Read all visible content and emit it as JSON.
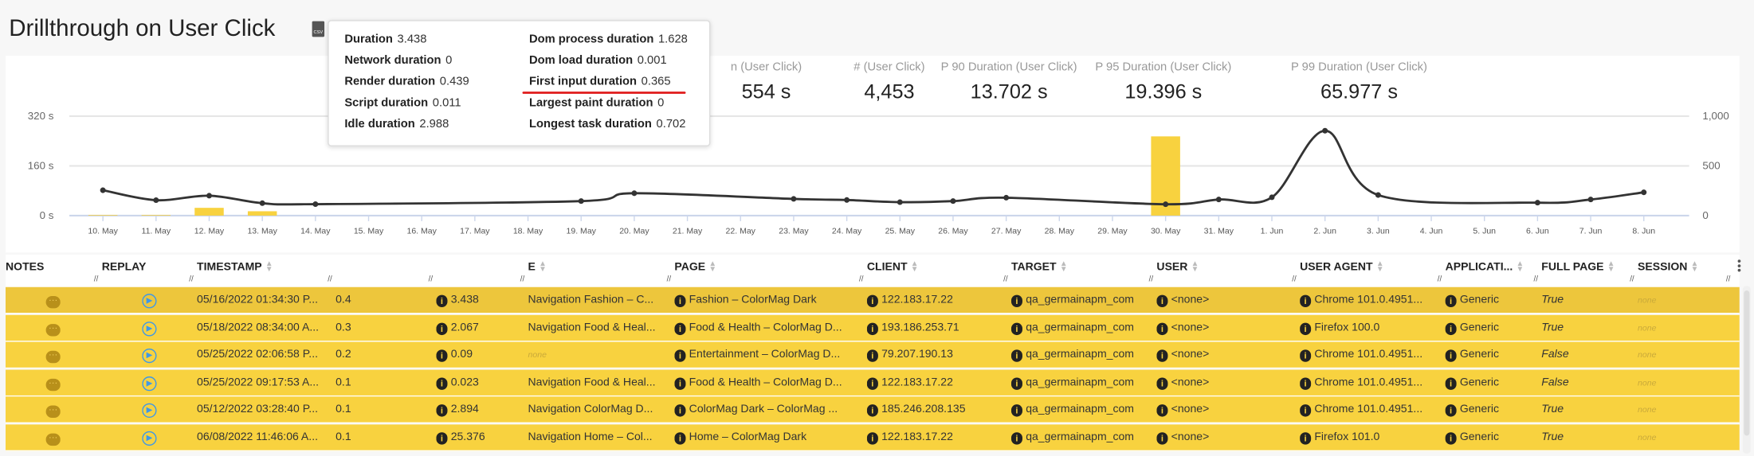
{
  "page": {
    "title": "Drillthrough on User Click",
    "export_icon": "csv-file-icon"
  },
  "stats": [
    {
      "label": "n (User Click)",
      "value": "554 s"
    },
    {
      "label": "# (User Click)",
      "value": "4,453"
    },
    {
      "label": "P 90 Duration (User Click)",
      "value": "13.702 s"
    },
    {
      "label": "P 95 Duration (User Click)",
      "value": "19.396 s"
    },
    {
      "label": "P 99 Duration (User Click)",
      "value": "65.977 s"
    }
  ],
  "chart_data": {
    "type": "bar",
    "x_categories": [
      "10. May",
      "11. May",
      "12. May",
      "13. May",
      "14. May",
      "15. May",
      "16. May",
      "17. May",
      "18. May",
      "19. May",
      "20. May",
      "21. May",
      "22. May",
      "23. May",
      "24. May",
      "25. May",
      "26. May",
      "27. May",
      "28. May",
      "29. May",
      "30. May",
      "31. May",
      "1. Jun",
      "2. Jun",
      "3. Jun",
      "4. Jun",
      "5. Jun",
      "6. Jun",
      "7. Jun",
      "8. Jun"
    ],
    "left_axis": {
      "ticks": [
        "0 s",
        "160 s",
        "320 s"
      ],
      "range": [
        0,
        320
      ],
      "unit": "s"
    },
    "right_axis": {
      "ticks": [
        "0",
        "500",
        "1,000"
      ],
      "range": [
        0,
        1000
      ]
    },
    "grid": true,
    "series": [
      {
        "type": "bar",
        "axis": "left",
        "color": "#f8d23f",
        "points": [
          [
            "10. May",
            2
          ],
          [
            "11. May",
            2
          ],
          [
            "12. May",
            25
          ],
          [
            "13. May",
            14
          ],
          [
            "30. May",
            255
          ]
        ]
      },
      {
        "type": "line",
        "axis": "right",
        "color": "#333333",
        "points": [
          [
            "10. May",
            255
          ],
          [
            "11. May",
            155
          ],
          [
            "12. May",
            200
          ],
          [
            "13. May",
            125
          ],
          [
            "14. May",
            115
          ],
          [
            "19. May",
            146
          ],
          [
            "20. May",
            225
          ],
          [
            "23. May",
            168
          ],
          [
            "24. May",
            157
          ],
          [
            "25. May",
            135
          ],
          [
            "26. May",
            146
          ],
          [
            "27. May",
            180
          ],
          [
            "30. May",
            114
          ],
          [
            "31. May",
            162
          ],
          [
            "1. Jun",
            184
          ],
          [
            "2. Jun",
            854
          ],
          [
            "3. Jun",
            207
          ],
          [
            "6. Jun",
            130
          ],
          [
            "7. Jun",
            162
          ],
          [
            "8. Jun",
            234
          ]
        ]
      }
    ]
  },
  "tooltip": {
    "items": [
      {
        "label": "Duration",
        "value": "3.438"
      },
      {
        "label": "Network duration",
        "value": "0"
      },
      {
        "label": "Render duration",
        "value": "0.439"
      },
      {
        "label": "Script duration",
        "value": "0.011"
      },
      {
        "label": "Idle duration",
        "value": "2.988"
      },
      {
        "label": "Dom process duration",
        "value": "1.628"
      },
      {
        "label": "Dom load duration",
        "value": "0.001"
      },
      {
        "label": "First input duration",
        "value": "0.365"
      },
      {
        "label": "Largest paint duration",
        "value": "0"
      },
      {
        "label": "Longest task duration",
        "value": "0.702"
      }
    ],
    "highlight_color": "#e01b1b"
  },
  "table": {
    "columns": [
      "NOTES",
      "REPLAY",
      "TIMESTAMP",
      "",
      "",
      "E",
      "PAGE",
      "CLIENT",
      "TARGET",
      "USER",
      "USER AGENT",
      "APPLICATI...",
      "FULL PAGE",
      "SESSION"
    ],
    "row_color": "#f8d23f",
    "rows": [
      {
        "timestamp": "05/16/2022 01:34:30 P...",
        "score": "0.4",
        "duration": "3.438",
        "page_title": "Navigation Fashion – C...",
        "page": "Fashion – ColorMag Dark",
        "client": "122.183.17.22",
        "target": "qa_germainapm_com",
        "user": "<none>",
        "user_agent": "Chrome 101.0.4951...",
        "application": "Generic",
        "full_page": "True",
        "session": "none"
      },
      {
        "timestamp": "05/18/2022 08:34:00 A...",
        "score": "0.3",
        "duration": "2.067",
        "page_title": "Navigation Food & Heal...",
        "page": "Food & Health – ColorMag D...",
        "client": "193.186.253.71",
        "target": "qa_germainapm_com",
        "user": "<none>",
        "user_agent": "Firefox 100.0",
        "application": "Generic",
        "full_page": "True",
        "session": "none"
      },
      {
        "timestamp": "05/25/2022 02:06:58 P...",
        "score": "0.2",
        "duration": "0.09",
        "page_title": "none",
        "page": "Entertainment – ColorMag D...",
        "client": "79.207.190.13",
        "target": "qa_germainapm_com",
        "user": "<none>",
        "user_agent": "Chrome 101.0.4951...",
        "application": "Generic",
        "full_page": "False",
        "session": "none"
      },
      {
        "timestamp": "05/25/2022 09:17:53 A...",
        "score": "0.1",
        "duration": "0.023",
        "page_title": "Navigation Food & Heal...",
        "page": "Food & Health – ColorMag D...",
        "client": "122.183.17.22",
        "target": "qa_germainapm_com",
        "user": "<none>",
        "user_agent": "Chrome 101.0.4951...",
        "application": "Generic",
        "full_page": "False",
        "session": "none"
      },
      {
        "timestamp": "05/12/2022 03:28:40 P...",
        "score": "0.1",
        "duration": "2.894",
        "page_title": "Navigation ColorMag D...",
        "page": "ColorMag Dark – ColorMag ...",
        "client": "185.246.208.135",
        "target": "qa_germainapm_com",
        "user": "<none>",
        "user_agent": "Chrome 101.0.4951...",
        "application": "Generic",
        "full_page": "True",
        "session": "none"
      },
      {
        "timestamp": "06/08/2022 11:46:06 A...",
        "score": "0.1",
        "duration": "25.376",
        "page_title": "Navigation Home – Col...",
        "page": "Home – ColorMag Dark",
        "client": "122.183.17.22",
        "target": "qa_germainapm_com",
        "user": "<none>",
        "user_agent": "Firefox 101.0",
        "application": "Generic",
        "full_page": "True",
        "session": "none"
      }
    ]
  }
}
